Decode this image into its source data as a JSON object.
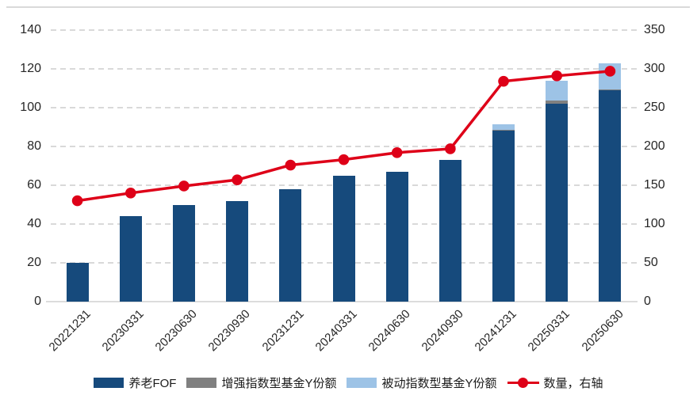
{
  "chart_data": {
    "type": "bar",
    "bar_mode": "stacked",
    "categories": [
      "20221231",
      "20230331",
      "20230630",
      "20230930",
      "20231231",
      "20240331",
      "20240630",
      "20240930",
      "20241231",
      "20250331",
      "20250630"
    ],
    "series": [
      {
        "name": "养老FOF",
        "type": "bar",
        "axis": "left",
        "color": "#164A7C",
        "values": [
          20,
          44,
          50,
          52,
          58,
          65,
          67,
          73,
          88,
          102,
          109
        ]
      },
      {
        "name": "增强指数型基金Y份额",
        "type": "bar",
        "axis": "left",
        "color": "#808080",
        "values": [
          0,
          0,
          0,
          0,
          0,
          0,
          0,
          0,
          0.5,
          1.5,
          0.5
        ]
      },
      {
        "name": "被动指数型基金Y份额",
        "type": "bar",
        "axis": "left",
        "color": "#9DC3E6",
        "values": [
          0,
          0,
          0,
          0,
          0,
          0,
          0,
          0,
          3,
          10.5,
          13.5
        ]
      },
      {
        "name": "数量，右轴",
        "type": "line",
        "axis": "right",
        "color": "#DE0018",
        "values": [
          130,
          140,
          149,
          157,
          176,
          183,
          192,
          197,
          284,
          291,
          297
        ]
      }
    ],
    "left_axis": {
      "min": 0,
      "max": 140,
      "step": 20,
      "ticks": [
        0,
        20,
        40,
        60,
        80,
        100,
        120,
        140
      ]
    },
    "right_axis": {
      "min": 0,
      "max": 350,
      "step": 50,
      "ticks": [
        0,
        50,
        100,
        150,
        200,
        250,
        300,
        350
      ]
    },
    "grid": "horizontal-dashed",
    "legend_position": "bottom"
  },
  "colors": {
    "gridline": "#D9D9D9",
    "axis_line": "#DCDCDC",
    "tick_label": "#262626"
  }
}
